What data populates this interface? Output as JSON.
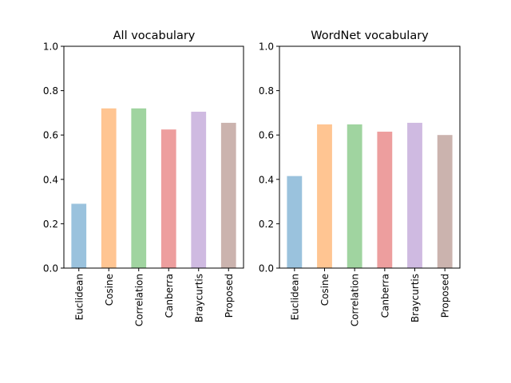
{
  "chart_data": [
    {
      "type": "bar",
      "title": "All vocabulary",
      "categories": [
        "Euclidean",
        "Cosine",
        "Correlation",
        "Canberra",
        "Braycurtis",
        "Proposed"
      ],
      "values": [
        0.29,
        0.72,
        0.72,
        0.625,
        0.705,
        0.655
      ],
      "xlabel": "",
      "ylabel": "",
      "ylim": [
        0,
        1.0
      ],
      "yticks": [
        "0.0",
        "0.2",
        "0.4",
        "0.6",
        "0.8",
        "1.0"
      ],
      "grid": false
    },
    {
      "type": "bar",
      "title": "WordNet vocabulary",
      "categories": [
        "Euclidean",
        "Cosine",
        "Correlation",
        "Canberra",
        "Braycurtis",
        "Proposed"
      ],
      "values": [
        0.415,
        0.648,
        0.648,
        0.615,
        0.655,
        0.6
      ],
      "xlabel": "",
      "ylabel": "",
      "ylim": [
        0,
        1.0
      ],
      "yticks": [
        "0.0",
        "0.2",
        "0.4",
        "0.6",
        "0.8",
        "1.0"
      ],
      "grid": false
    }
  ],
  "colors": [
    "#1f77b4",
    "#ff7f0e",
    "#2ca02c",
    "#d62728",
    "#9467bd",
    "#8c564b"
  ],
  "bar_opacity": 0.45
}
